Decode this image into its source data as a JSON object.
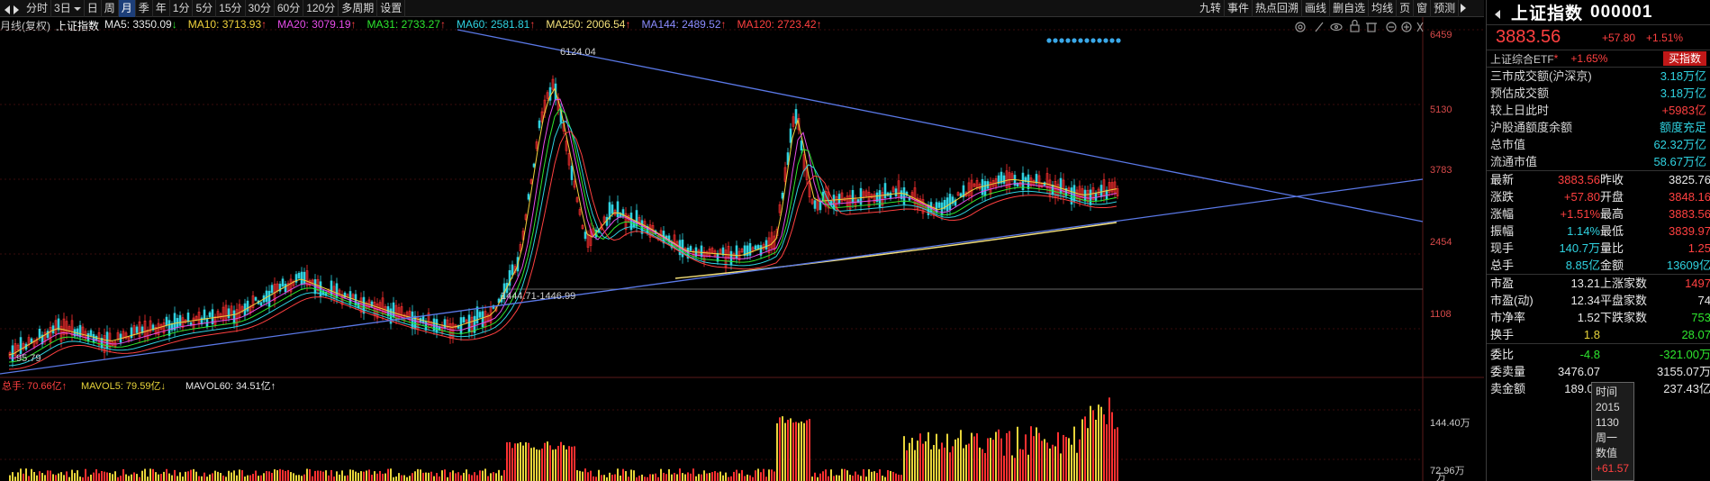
{
  "toolbar": {
    "items": [
      "分时",
      "3日",
      "日",
      "周",
      "月",
      "季",
      "年",
      "1分",
      "5分",
      "15分",
      "30分",
      "60分",
      "120分",
      "多周期",
      "设置"
    ],
    "active_index": 4,
    "right_items": [
      "九转",
      "事件",
      "热点回溯",
      "画线",
      "删自选",
      "均线",
      "页",
      "窗",
      "预测"
    ]
  },
  "ma_legend": {
    "period": "月线(复权)",
    "name": "上证指数",
    "items": [
      {
        "label": "MA5: 3350.09",
        "arrow": "↓",
        "color": "#e8e8e8"
      },
      {
        "label": "MA10: 3713.93",
        "arrow": "↑",
        "color": "#f2d23c"
      },
      {
        "label": "MA20: 3079.19",
        "arrow": "↑",
        "color": "#e84ce8"
      },
      {
        "label": "MA31: 2733.27",
        "arrow": "↑",
        "color": "#2ee62e"
      },
      {
        "label": "MA60: 2581.81",
        "arrow": "↑",
        "color": "#2fd2e0"
      },
      {
        "label": "MA250: 2006.54",
        "arrow": "↑",
        "color": "#f4e07a"
      },
      {
        "label": "MA144: 2489.52",
        "arrow": "↑",
        "color": "#8c8cff"
      },
      {
        "label": "MA120: 2723.42",
        "arrow": "↑",
        "color": "#ff4040"
      }
    ]
  },
  "chart_data": {
    "type": "candlestick",
    "price_axis_ticks": [
      "6459",
      "5130",
      "3783",
      "2454",
      "1108"
    ],
    "annotations": {
      "high": "6124.04",
      "low_zone": "1444.71-1446.99",
      "start": "95.79"
    },
    "volume_axis_ticks": [
      "144.40万",
      "72.96万",
      "万"
    ],
    "volume_legend": [
      {
        "label": "总手: 70.66亿",
        "arrow": "↑",
        "color": "#ff4040"
      },
      {
        "label": "MAVOL5: 79.59亿",
        "arrow": "↓",
        "color": "#e8d43a"
      },
      {
        "label": "MAVOL60: 34.51亿",
        "arrow": "↑",
        "color": "#e8e8e8"
      }
    ],
    "colors": {
      "up": "#ff3030",
      "down": "#2fd2e0",
      "trend": "#5a78e6"
    }
  },
  "panel": {
    "title": "上证指数",
    "code": "000001",
    "price": "3883.56",
    "change": "+57.80",
    "change_pct": "+1.51%",
    "etf_label": "上证综合ETF",
    "etf_mark": "*",
    "etf_pct": "+1.65%",
    "buy_label": "买指数",
    "market": [
      {
        "k": "三市成交额(沪深京)",
        "v": "3.18万亿",
        "c": "cyan"
      },
      {
        "k": "预估成交额",
        "v": "3.18万亿",
        "c": "cyan"
      },
      {
        "k": "较上日此时",
        "v": "+5983亿",
        "c": "red"
      },
      {
        "k": "沪股通额度余额",
        "v": "额度充足",
        "c": "cyan"
      },
      {
        "k": "总市值",
        "v": "62.32万亿",
        "c": "cyan"
      },
      {
        "k": "流通市值",
        "v": "58.67万亿",
        "c": "cyan"
      }
    ],
    "quote": [
      [
        "最新",
        "3883.56",
        "red",
        "昨收",
        "3825.76",
        "white"
      ],
      [
        "涨跌",
        "+57.80",
        "red",
        "开盘",
        "3848.16",
        "red"
      ],
      [
        "涨幅",
        "+1.51%",
        "red",
        "最高",
        "3883.56",
        "red"
      ],
      [
        "振幅",
        "1.14%",
        "cyan",
        "最低",
        "3839.97",
        "red"
      ],
      [
        "现手",
        "140.7万",
        "cyan",
        "量比",
        "1.25",
        "red"
      ],
      [
        "总手",
        "8.85亿",
        "cyan",
        "金额",
        "13609亿",
        "cyan"
      ]
    ],
    "stats": [
      [
        "市盈",
        "13.21",
        "white",
        "上涨家数",
        "1497",
        "red"
      ],
      [
        "市盈(动)",
        "12.34",
        "white",
        "平盘家数",
        "74",
        "white"
      ],
      [
        "市净率",
        "1.52",
        "white",
        "下跌家数",
        "753",
        "green"
      ],
      [
        "换手",
        "1.8",
        "yellow",
        "",
        "28.07",
        "green"
      ]
    ],
    "orders": [
      [
        "委比",
        "-4.8",
        "green",
        "",
        "-321.00万",
        "green"
      ],
      [
        "委卖量",
        "3476.07",
        "white",
        "",
        "3155.07万",
        "white"
      ],
      [
        "卖金额",
        "189.02",
        "white",
        "",
        "237.43亿",
        "white"
      ]
    ],
    "tooltip": [
      "时间",
      "2015",
      "1130",
      "周一",
      "数值",
      "+61.57"
    ]
  }
}
